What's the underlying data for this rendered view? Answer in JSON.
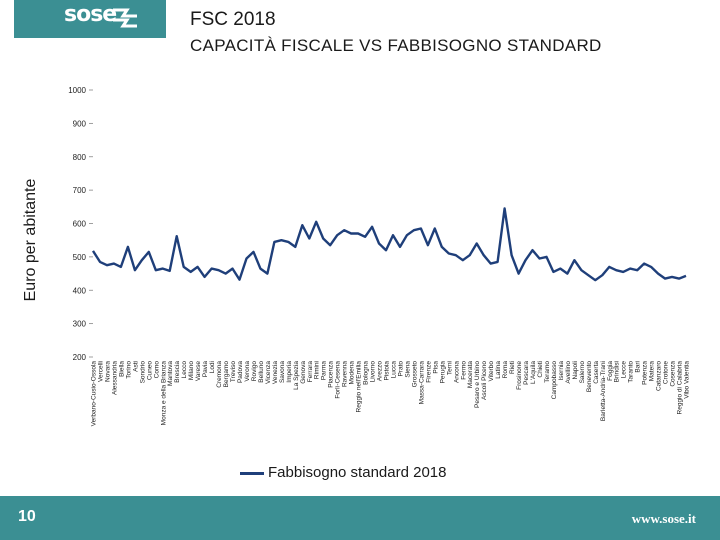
{
  "header": {
    "logo_text": "sose",
    "title": "FSC 2018",
    "subtitle": "CAPACITÀ FISCALE VS FABBISOGNO STANDARD"
  },
  "footer": {
    "page_number": "10",
    "url": "www.sose.it"
  },
  "colors": {
    "teal": "#3b8f93",
    "series": "#1f3f7a"
  },
  "icons": {
    "logo_mark": "sose-logo-icon"
  },
  "chart_data": {
    "type": "line",
    "ylabel": "Euro per abitante",
    "ylim": [
      200,
      1000
    ],
    "yticks": [
      200,
      300,
      400,
      500,
      600,
      700,
      800,
      900,
      1000
    ],
    "grid": false,
    "legend_position": "bottom",
    "x_labels_visible": [
      "Verbano-Cusio-Ossola",
      "Vercelli",
      "Novara",
      "Alessandria",
      "Biella",
      "Torino",
      "Asti",
      "Sondrio",
      "Cuneo",
      "Como",
      "Monza e della Brianza",
      "Mantova",
      "Brescia",
      "Lecco",
      "Milano",
      "Varese",
      "Pavia",
      "Lodi",
      "Cremona",
      "Bergamo",
      "Treviso",
      "Padova",
      "Verona",
      "Rovigo",
      "Belluno",
      "Vicenza",
      "Venezia",
      "Savona",
      "Imperia",
      "La Spezia",
      "Genova",
      "Ferrara",
      "Rimini",
      "Parma",
      "Piacenza",
      "Forlì-Cesena",
      "Ravenna",
      "Modena",
      "Reggio nell'Emilia",
      "Bologna",
      "Livorno",
      "Arezzo",
      "Pistoia",
      "Lucca",
      "Prato",
      "Siena",
      "Grosseto",
      "Massa-Carrara",
      "Firenze",
      "Pisa",
      "Perugia",
      "Terni",
      "Ancona",
      "Fermo",
      "Macerata",
      "Pesaro e Urbino",
      "Ascoli Piceno",
      "Viterbo",
      "Latina",
      "Roma",
      "Rieti",
      "Frosinone",
      "Pescara",
      "L'Aquila",
      "Chieti",
      "Teramo",
      "Campobasso",
      "Isernia",
      "Avellino",
      "Napoli",
      "Salerno",
      "Benevento",
      "Caserta",
      "Barletta-Andria-Trani",
      "Foggia",
      "Brindisi",
      "Lecce",
      "Taranto",
      "Bari",
      "Potenza",
      "Matera",
      "Catanzaro",
      "Crotone",
      "Cosenza",
      "Reggio di Calabria",
      "Vibo Valentia"
    ],
    "series": [
      {
        "name": "Fabbisogno standard 2018",
        "color": "#1f3f7a",
        "values": [
          518,
          485,
          475,
          480,
          470,
          530,
          460,
          490,
          515,
          460,
          465,
          458,
          562,
          470,
          455,
          470,
          440,
          465,
          460,
          450,
          465,
          432,
          495,
          515,
          465,
          450,
          545,
          550,
          545,
          530,
          595,
          555,
          605,
          555,
          535,
          565,
          580,
          570,
          570,
          560,
          590,
          540,
          520,
          565,
          530,
          565,
          580,
          585,
          535,
          585,
          530,
          510,
          505,
          490,
          505,
          540,
          505,
          480,
          485,
          645,
          505,
          450,
          490,
          520,
          495,
          500,
          455,
          465,
          450,
          490,
          460,
          445,
          430,
          445,
          470,
          460,
          455,
          465,
          460,
          480,
          470,
          450,
          435,
          440,
          435,
          443
        ]
      }
    ]
  }
}
